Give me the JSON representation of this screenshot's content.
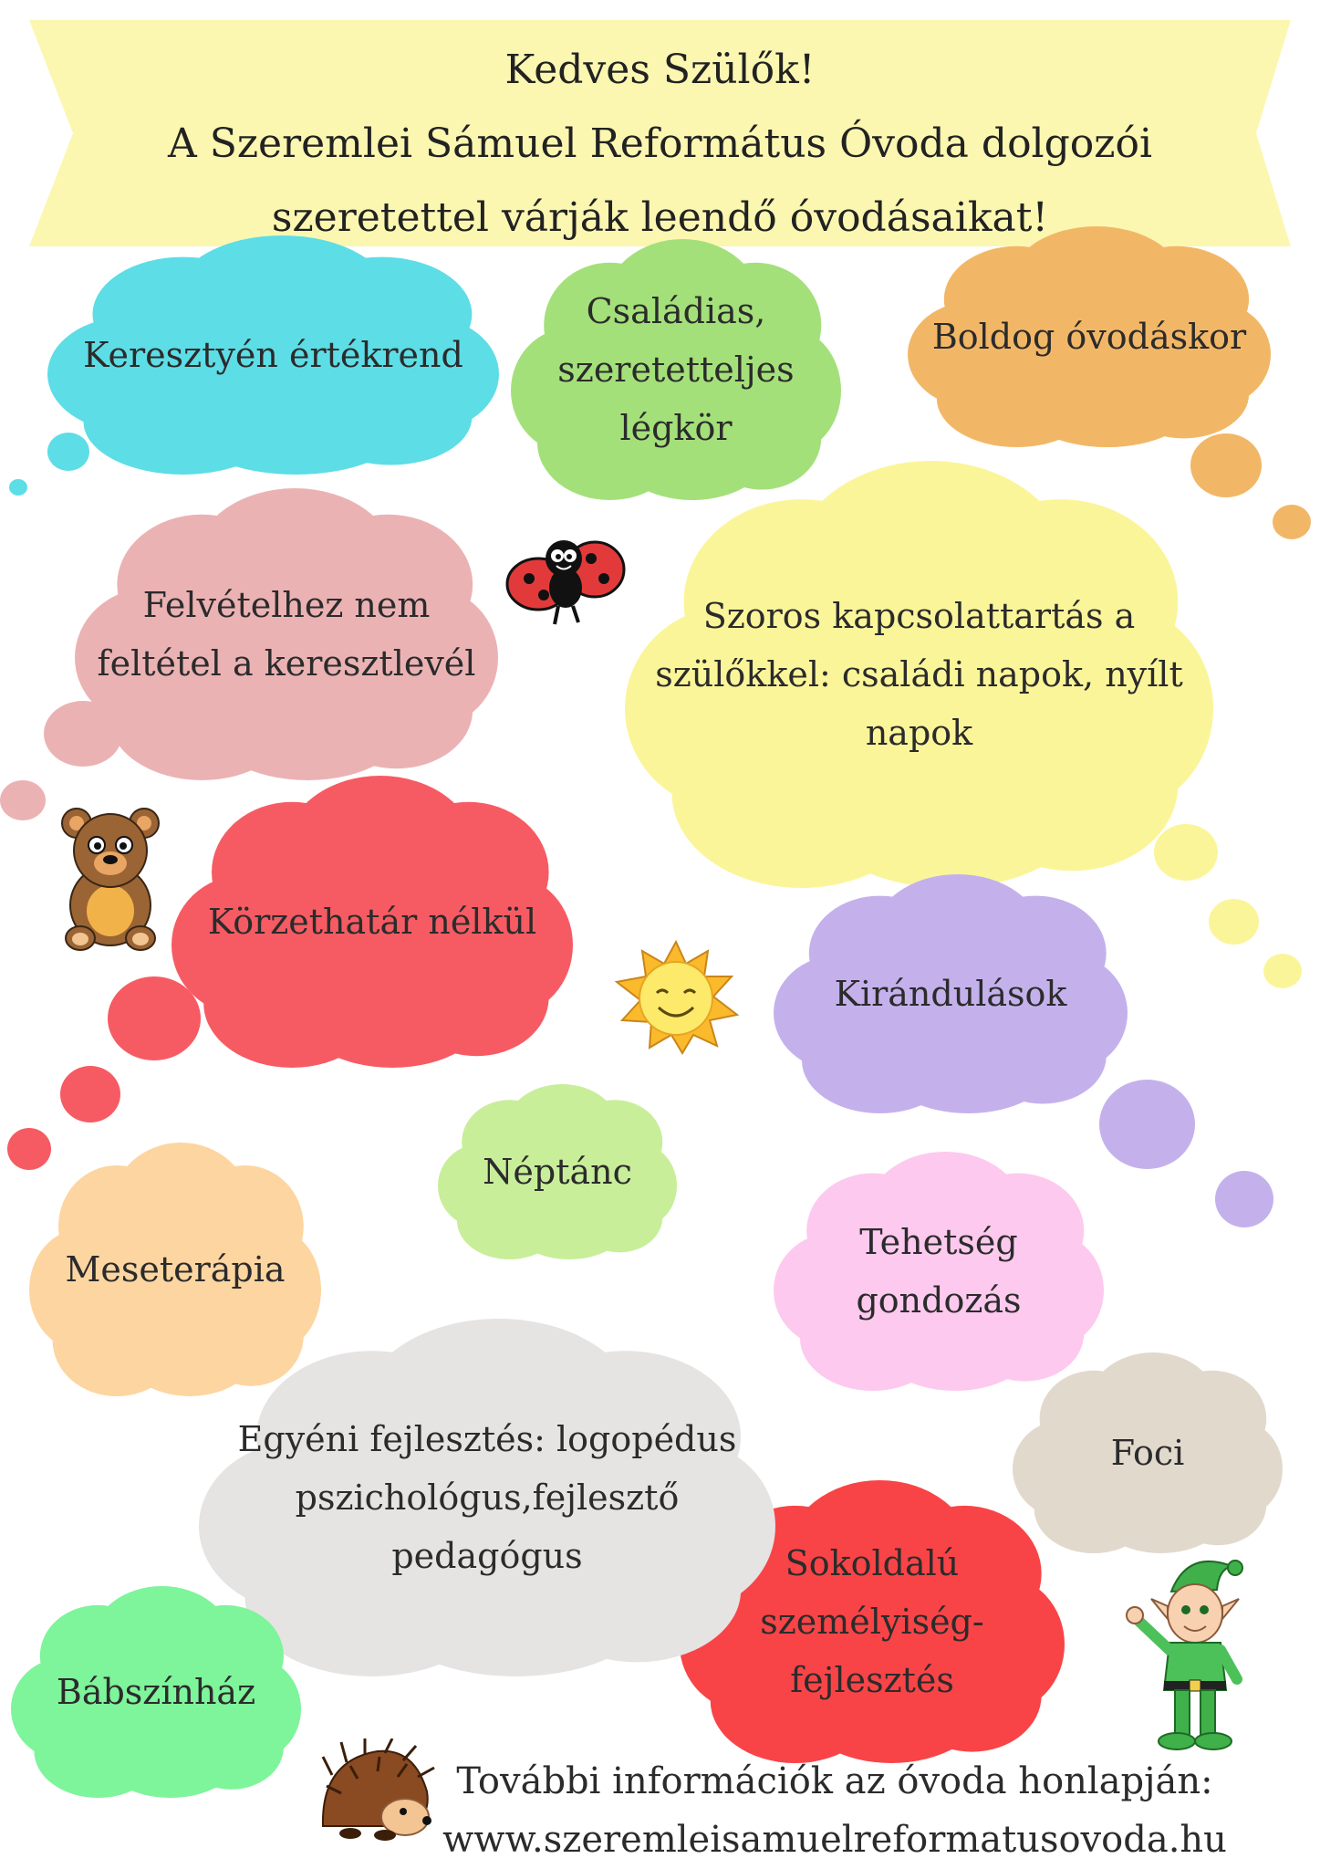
{
  "banner": {
    "line1": "Kedves Szülők!",
    "line2": "A Szeremlei Sámuel Református Óvoda dolgozói",
    "line3": "szeretettel várják leendő óvodásaikat!",
    "color": "#fbf7b1"
  },
  "clouds": {
    "keresztyen": {
      "text": "Keresztyén értékrend",
      "color": "#5ddde6"
    },
    "csaladias": {
      "line1": "Családias,",
      "line2": "szeretetteljes",
      "line3": "légkör",
      "color": "#a4e07a"
    },
    "boldog": {
      "text": "Boldog óvodáskor",
      "color": "#f2b766"
    },
    "felvetel": {
      "line1": "Felvételhez nem",
      "line2": "feltétel a keresztlevél",
      "color": "#ebb2b4"
    },
    "szoros": {
      "line1": "Szoros kapcsolattartás a",
      "line2": "szülőkkel: családi napok, nyílt",
      "line3": "napok",
      "color": "#fbf59a"
    },
    "korzet": {
      "text": "Körzethatár nélkül",
      "color": "#f65b63"
    },
    "kirandulas": {
      "text": "Kirándulások",
      "color": "#c4b1ec"
    },
    "neptanc": {
      "text": "Néptánc",
      "color": "#c8ee9a"
    },
    "mese": {
      "text": "Meseterápia",
      "color": "#fdd5a0"
    },
    "tehetseg": {
      "line1": "Tehetség",
      "line2": "gondozás",
      "color": "#fdc9ee"
    },
    "egyeni": {
      "line1": "Egyéni fejlesztés: logopédus",
      "line2": "pszichológus,fejlesztő",
      "line3": "pedagógus",
      "color": "#e6e3e3"
    },
    "foci": {
      "text": "Foci",
      "color": "#e2d9cd"
    },
    "sokoldalu": {
      "line1": "Sokoldalú",
      "line2": "személyiség-",
      "line3": "fejlesztés",
      "color": "#f84447"
    },
    "babszinhaz": {
      "text": "Bábszínház",
      "color": "#7ef49b"
    }
  },
  "footer": {
    "line1": "További információk az óvoda honlapján:",
    "line2": "www.szeremleisamuelreformatusovoda.hu"
  },
  "illustrations": {
    "ladybug": "ladybug-icon",
    "bear": "teddy-bear-icon",
    "sun": "sun-icon",
    "elf": "elf-icon",
    "hedgehog": "hedgehog-icon"
  }
}
